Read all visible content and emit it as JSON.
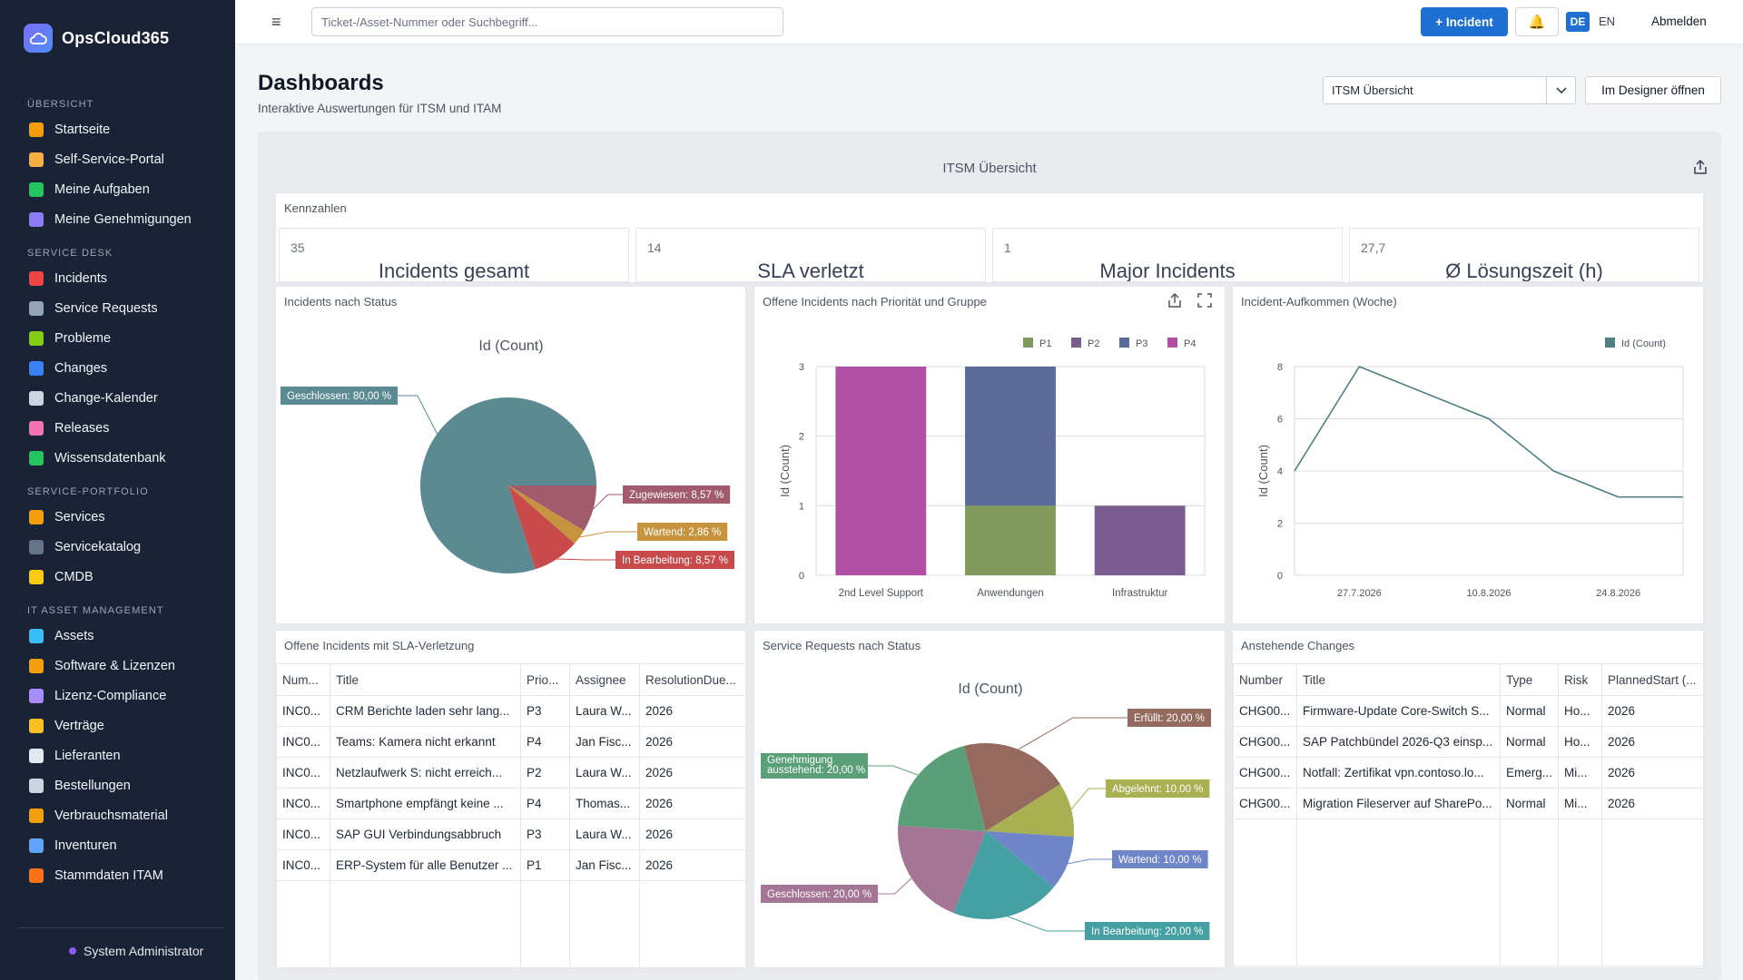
{
  "app": {
    "name": "OpsCloud365"
  },
  "sidebar": {
    "sections": [
      {
        "title": "ÜBERSICHT",
        "items": [
          {
            "label": "Startseite",
            "icon": "home-icon",
            "color": "#f59e0b"
          },
          {
            "label": "Self-Service-Portal",
            "icon": "person-icon",
            "color": "#f5b041"
          },
          {
            "label": "Meine Aufgaben",
            "icon": "checkbox-icon",
            "color": "#22c55e"
          },
          {
            "label": "Meine Genehmigungen",
            "icon": "checkmark-icon",
            "color": "#8b7cf6"
          }
        ]
      },
      {
        "title": "SERVICE DESK",
        "items": [
          {
            "label": "Incidents",
            "icon": "siren-icon",
            "color": "#ef4444"
          },
          {
            "label": "Service Requests",
            "icon": "inbox-icon",
            "color": "#94a3b8"
          },
          {
            "label": "Probleme",
            "icon": "puzzle-icon",
            "color": "#84cc16"
          },
          {
            "label": "Changes",
            "icon": "refresh-icon",
            "color": "#3b82f6"
          },
          {
            "label": "Change-Kalender",
            "icon": "calendar-icon",
            "color": "#cbd5e1"
          },
          {
            "label": "Releases",
            "icon": "rocket-icon",
            "color": "#f472b6"
          },
          {
            "label": "Wissensdatenbank",
            "icon": "books-icon",
            "color": "#22c55e"
          }
        ]
      },
      {
        "title": "SERVICE-PORTFOLIO",
        "items": [
          {
            "label": "Services",
            "icon": "cloud-icon",
            "color": "#f59e0b"
          },
          {
            "label": "Servicekatalog",
            "icon": "catalog-icon",
            "color": "#64748b"
          },
          {
            "label": "CMDB",
            "icon": "folder-icon",
            "color": "#facc15"
          }
        ]
      },
      {
        "title": "IT ASSET MANAGEMENT",
        "items": [
          {
            "label": "Assets",
            "icon": "monitor-icon",
            "color": "#38bdf8"
          },
          {
            "label": "Software & Lizenzen",
            "icon": "disc-icon",
            "color": "#f59e0b"
          },
          {
            "label": "Lizenz-Compliance",
            "icon": "clipboard-icon",
            "color": "#a78bfa"
          },
          {
            "label": "Verträge",
            "icon": "contract-icon",
            "color": "#fbbf24"
          },
          {
            "label": "Lieferanten",
            "icon": "building-icon",
            "color": "#e2e8f0"
          },
          {
            "label": "Bestellungen",
            "icon": "receipt-icon",
            "color": "#cbd5e1"
          },
          {
            "label": "Verbrauchsmaterial",
            "icon": "box-icon",
            "color": "#f59e0b"
          },
          {
            "label": "Inventuren",
            "icon": "magnifier-icon",
            "color": "#60a5fa"
          },
          {
            "label": "Stammdaten ITAM",
            "icon": "grid-icon",
            "color": "#f97316"
          }
        ]
      }
    ],
    "user": "System Administrator"
  },
  "topbar": {
    "search_placeholder": "Ticket-/Asset-Nummer oder Suchbegriff...",
    "new_incident": "+ Incident",
    "lang_active": "DE",
    "lang_other": "EN",
    "logout": "Abmelden"
  },
  "header": {
    "title": "Dashboards",
    "subtitle": "Interaktive Auswertungen für ITSM und ITAM",
    "selected_dashboard": "ITSM Übersicht",
    "designer_button": "Im Designer öffnen"
  },
  "dashboard": {
    "title": "ITSM Übersicht",
    "kpi_panel_title": "Kennzahlen",
    "kpis": [
      {
        "value": "35",
        "label": "Incidents gesamt"
      },
      {
        "value": "14",
        "label": "SLA verletzt"
      },
      {
        "value": "1",
        "label": "Major Incidents"
      },
      {
        "value": "27,7",
        "label": "Ø Lösungszeit (h)"
      }
    ],
    "panels": {
      "status": "Incidents nach Status",
      "priority": "Offene Incidents nach Priorität und Gruppe",
      "volume": "Incident-Aufkommen (Woche)",
      "sla": "Offene Incidents mit SLA-Verletzung",
      "requests": "Service Requests nach Status",
      "changes": "Anstehende Changes"
    },
    "sla_table": {
      "columns": [
        "Num...",
        "Title",
        "Prio...",
        "Assignee",
        "ResolutionDue..."
      ],
      "rows": [
        [
          "INC0...",
          "CRM Berichte laden sehr lang...",
          "P3",
          "Laura W...",
          "2026"
        ],
        [
          "INC0...",
          "Teams: Kamera nicht erkannt",
          "P4",
          "Jan Fisc...",
          "2026"
        ],
        [
          "INC0...",
          "Netzlaufwerk S: nicht erreich...",
          "P2",
          "Laura W...",
          "2026"
        ],
        [
          "INC0...",
          "Smartphone empfängt keine ...",
          "P4",
          "Thomas...",
          "2026"
        ],
        [
          "INC0...",
          "SAP GUI Verbindungsabbruch",
          "P3",
          "Laura W...",
          "2026"
        ],
        [
          "INC0...",
          "ERP-System für alle Benutzer ...",
          "P1",
          "Jan Fisc...",
          "2026"
        ]
      ]
    },
    "changes_table": {
      "columns": [
        "Number",
        "Title",
        "Type",
        "Risk",
        "PlannedStart (..."
      ],
      "rows": [
        [
          "CHG00...",
          "Firmware-Update Core-Switch S...",
          "Normal",
          "Ho...",
          "2026"
        ],
        [
          "CHG00...",
          "SAP Patchbündel 2026-Q3 einsp...",
          "Normal",
          "Ho...",
          "2026"
        ],
        [
          "CHG00...",
          "Notfall: Zertifikat vpn.contoso.lo...",
          "Emerg...",
          "Mi...",
          "2026"
        ],
        [
          "CHG00...",
          "Migration Fileserver auf SharePo...",
          "Normal",
          "Mi...",
          "2026"
        ]
      ]
    }
  },
  "chart_data": [
    {
      "type": "pie",
      "title": "Id (Count)",
      "slices": [
        {
          "label": "Geschlossen: 80,00 %",
          "value": 80.0,
          "color": "#5b8a93"
        },
        {
          "label": "Zugewiesen: 8,57 %",
          "value": 8.57,
          "color": "#a15b6c"
        },
        {
          "label": "Wartend: 2,86 %",
          "value": 2.86,
          "color": "#c6943e"
        },
        {
          "label": "In Bearbeitung: 8,57 %",
          "value": 8.57,
          "color": "#c94a4a"
        }
      ]
    },
    {
      "type": "bar",
      "stacked": true,
      "categories": [
        "2nd Level Support",
        "Anwendungen",
        "Infrastruktur"
      ],
      "ylabel": "Id (Count)",
      "ylim": [
        0,
        3
      ],
      "yticks": [
        0,
        1,
        2,
        3
      ],
      "legend_position": "top-right",
      "series": [
        {
          "name": "P1",
          "values": [
            0,
            1,
            0
          ],
          "color": "#7f9a5a"
        },
        {
          "name": "P2",
          "values": [
            0,
            0,
            1
          ],
          "color": "#7b5c8e"
        },
        {
          "name": "P3",
          "values": [
            0,
            2,
            0
          ],
          "color": "#5a6a99"
        },
        {
          "name": "P4",
          "values": [
            3,
            0,
            0
          ],
          "color": "#b04fa3"
        }
      ]
    },
    {
      "type": "line",
      "ylabel": "Id (Count)",
      "ylim": [
        0,
        8
      ],
      "yticks": [
        0,
        2,
        4,
        6,
        8
      ],
      "x_tick_labels": [
        "27.7.2026",
        "10.8.2026",
        "24.8.2026"
      ],
      "legend_position": "top-right",
      "series": [
        {
          "name": "Id (Count)",
          "color": "#4e7f84",
          "values": [
            4,
            8,
            7,
            6,
            4,
            3,
            3
          ]
        }
      ]
    },
    {
      "type": "pie",
      "title": "Id (Count)",
      "slices": [
        {
          "label": "Erfüllt: 20,00 %",
          "value": 20,
          "color": "#956a5e"
        },
        {
          "label": "Abgelehnt: 10,00 %",
          "value": 10,
          "color": "#a8b052"
        },
        {
          "label": "Wartend: 10,00 %",
          "value": 10,
          "color": "#6e86c8"
        },
        {
          "label": "In Bearbeitung: 20,00 %",
          "value": 20,
          "color": "#45a0a3"
        },
        {
          "label": "Geschlossen: 20,00 %",
          "value": 20,
          "color": "#a47594"
        },
        {
          "label": "Genehmigung ausstehend: 20,00 %",
          "value": 20,
          "color": "#5b9f78"
        }
      ]
    }
  ]
}
